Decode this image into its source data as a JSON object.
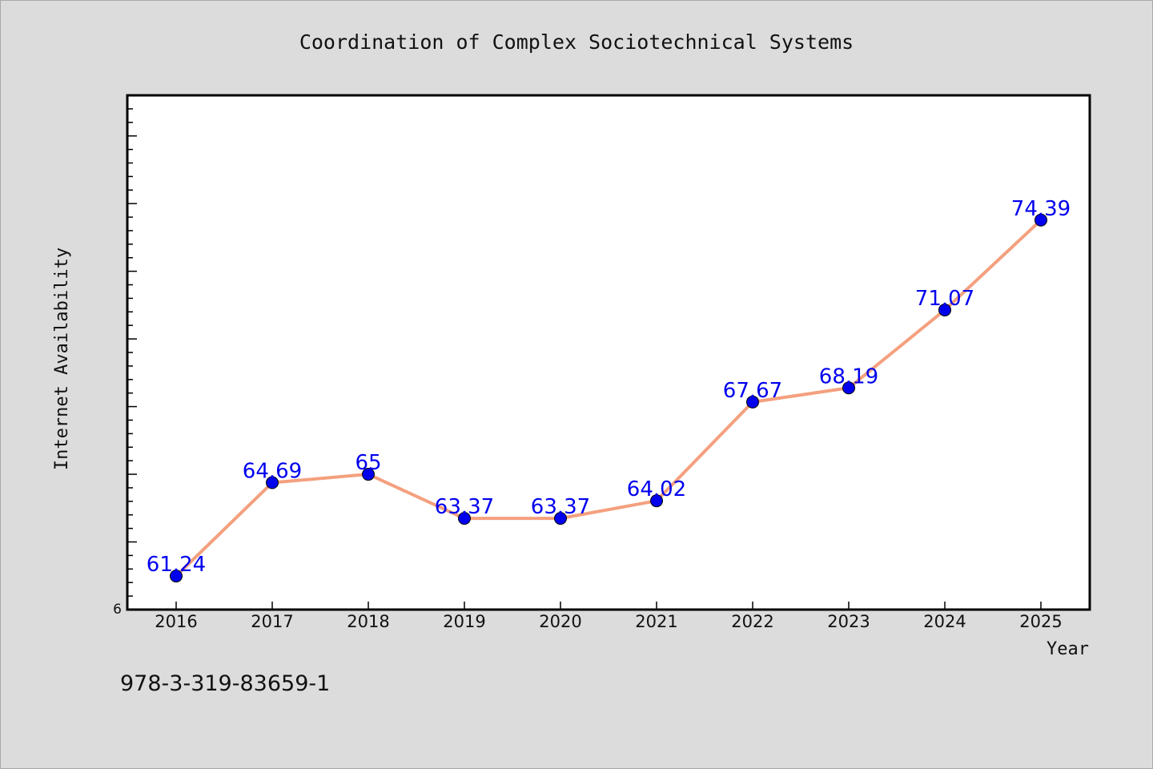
{
  "chart_data": {
    "type": "line",
    "title": "Coordination of Complex Sociotechnical Systems",
    "xlabel": "Year",
    "ylabel": "Internet Availability",
    "categories": [
      "2016",
      "2017",
      "2018",
      "2019",
      "2020",
      "2021",
      "2022",
      "2023",
      "2024",
      "2025"
    ],
    "series": [
      {
        "values": [
          61.24,
          64.69,
          65,
          63.37,
          63.37,
          64.02,
          67.67,
          68.19,
          71.07,
          74.39
        ],
        "labels": [
          "61.24",
          "64.69",
          "65",
          "63.37",
          "63.37",
          "64.02",
          "67.67",
          "68.19",
          "71.07",
          "74.39"
        ]
      }
    ],
    "ylim": [
      60,
      79
    ],
    "ytick_label": "6",
    "grid": false,
    "line_color": "#f4a07e",
    "marker_color": "#0000ee",
    "label_color": "#0000ee"
  },
  "footnote": "978-3-319-83659-1"
}
